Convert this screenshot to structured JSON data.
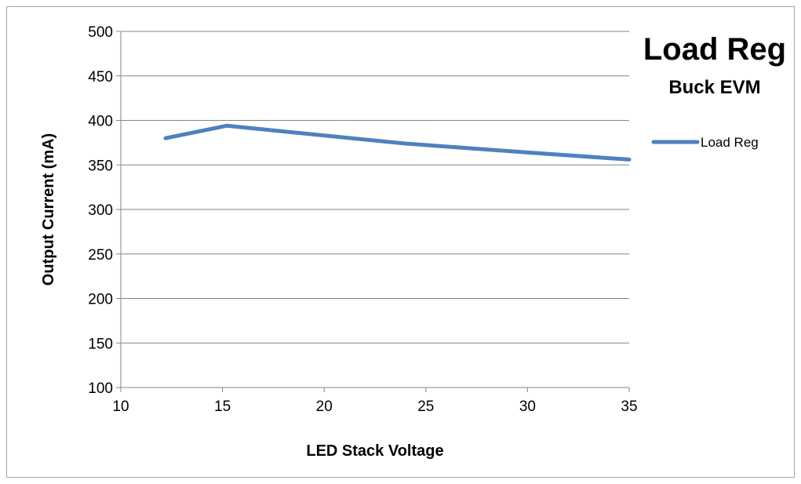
{
  "chart_data": {
    "type": "line",
    "title": "Load Reg",
    "subtitle": "Buck EVM",
    "xlabel": "LED Stack Voltage",
    "ylabel": "Output Current (mA)",
    "xlim": [
      10,
      35
    ],
    "ylim": [
      100,
      500
    ],
    "x_ticks": [
      10,
      15,
      20,
      25,
      30,
      35
    ],
    "y_ticks": [
      100,
      150,
      200,
      250,
      300,
      350,
      400,
      450,
      500
    ],
    "grid": "horizontal",
    "legend_position": "right",
    "series": [
      {
        "name": "Load Reg",
        "color": "#4f81bd",
        "x": [
          12.2,
          15.2,
          24,
          30,
          35
        ],
        "y": [
          380,
          394,
          374,
          364,
          356
        ]
      }
    ]
  }
}
